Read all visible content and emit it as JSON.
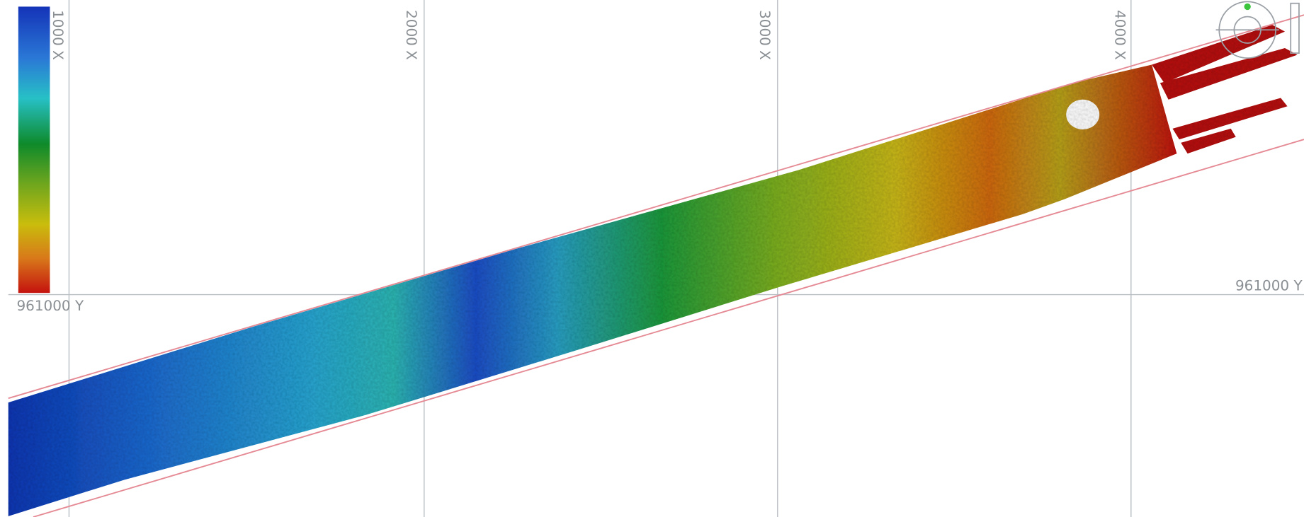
{
  "grid": {
    "x_labels": [
      "1000 X",
      "2000 X",
      "3000 X",
      "4000 X"
    ],
    "y_labels": [
      "961000 Y",
      "961000 Y"
    ]
  }
}
